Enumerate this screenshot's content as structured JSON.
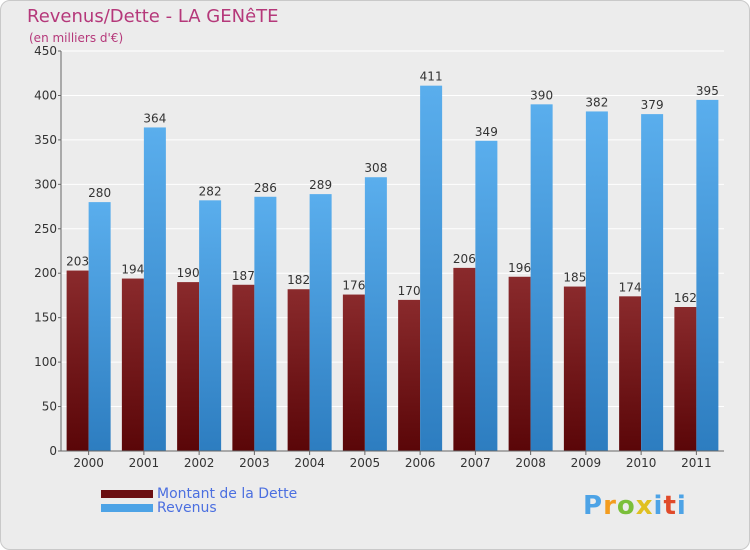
{
  "title": "Revenus/Dette - LA GENêTE",
  "subtitle": "(en milliers d'€)",
  "chart_data": {
    "type": "bar",
    "title": "Revenus/Dette - LA GENêTE",
    "subtitle": "(en milliers d'€)",
    "xlabel": "",
    "ylabel": "",
    "ylim": [
      0,
      450
    ],
    "yticks": [
      0,
      50,
      100,
      150,
      200,
      250,
      300,
      350,
      400,
      450
    ],
    "grid": true,
    "legend_position": "bottom-left",
    "categories": [
      "2000",
      "2001",
      "2002",
      "2003",
      "2004",
      "2005",
      "2006",
      "2007",
      "2008",
      "2009",
      "2010",
      "2011"
    ],
    "series": [
      {
        "name": "Montant de la Dette",
        "color": "#7b1e22",
        "values": [
          203,
          194,
          190,
          187,
          182,
          176,
          170,
          206,
          196,
          185,
          174,
          162
        ]
      },
      {
        "name": "Revenus",
        "color": "#4da3e6",
        "values": [
          280,
          364,
          282,
          286,
          289,
          308,
          411,
          349,
          390,
          382,
          379,
          395
        ]
      }
    ]
  },
  "legend": {
    "items": [
      {
        "label": "Montant de la Dette",
        "color": "#6b0f12"
      },
      {
        "label": "Revenus",
        "color": "#4da3e6"
      }
    ]
  },
  "logo": {
    "text": "Proxiti",
    "colors": [
      "#4da3e6",
      "#f39c1f",
      "#7bbf3a",
      "#e0c021",
      "#4da3e6",
      "#e04a2a",
      "#4da3e6"
    ]
  }
}
